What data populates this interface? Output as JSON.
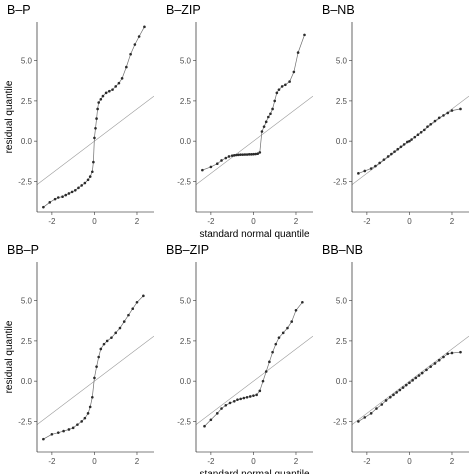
{
  "chart_data": [
    {
      "type": "scatter",
      "title": "B–P",
      "xlabel": "",
      "ylabel": "residual quantile",
      "xlim": [
        -2.7,
        2.8
      ],
      "ylim": [
        -4.4,
        7.4
      ],
      "xticks": [
        -2,
        0,
        2
      ],
      "yticks": [
        -2.5,
        0.0,
        2.5,
        5.0
      ],
      "ytick_labels": [
        "-2.5",
        "0.0",
        "2.5",
        "5.0"
      ],
      "xtick_labels": [
        "-2",
        "0",
        "2"
      ],
      "reference_line": {
        "intercept": 0,
        "slope": 1
      },
      "theoretical": [
        -2.4,
        -2.1,
        -1.85,
        -1.7,
        -1.5,
        -1.35,
        -1.2,
        -1.05,
        -0.9,
        -0.75,
        -0.6,
        -0.45,
        -0.3,
        -0.2,
        -0.1,
        -0.05,
        0.0,
        0.05,
        0.1,
        0.15,
        0.2,
        0.3,
        0.4,
        0.55,
        0.7,
        0.85,
        1.0,
        1.15,
        1.3,
        1.5,
        1.7,
        1.9,
        2.1,
        2.35
      ],
      "sample": [
        -4.1,
        -3.8,
        -3.6,
        -3.5,
        -3.45,
        -3.35,
        -3.25,
        -3.15,
        -3.05,
        -2.9,
        -2.75,
        -2.6,
        -2.4,
        -2.2,
        -1.9,
        -1.3,
        0.2,
        0.8,
        1.4,
        2.0,
        2.4,
        2.6,
        2.8,
        3.0,
        3.1,
        3.2,
        3.4,
        3.6,
        3.9,
        4.6,
        5.4,
        6.0,
        6.5,
        7.1
      ]
    },
    {
      "type": "scatter",
      "title": "B–ZIP",
      "xlabel": "standard normal quantile",
      "ylabel": "",
      "xlim": [
        -2.7,
        2.8
      ],
      "ylim": [
        -4.4,
        7.4
      ],
      "xticks": [
        -2,
        0,
        2
      ],
      "yticks": [
        -2.5,
        0.0,
        2.5,
        5.0
      ],
      "ytick_labels": [
        "-2.5",
        "0.0",
        "2.5",
        "5.0"
      ],
      "xtick_labels": [
        "-2",
        "0",
        "2"
      ],
      "reference_line": {
        "intercept": 0,
        "slope": 1
      },
      "theoretical": [
        -2.4,
        -2.0,
        -1.7,
        -1.5,
        -1.3,
        -1.15,
        -1.0,
        -0.9,
        -0.8,
        -0.7,
        -0.6,
        -0.5,
        -0.4,
        -0.3,
        -0.2,
        -0.1,
        0.0,
        0.1,
        0.2,
        0.3,
        0.4,
        0.5,
        0.6,
        0.7,
        0.8,
        0.9,
        1.0,
        1.1,
        1.2,
        1.35,
        1.5,
        1.7,
        1.9,
        2.1,
        2.4
      ],
      "sample": [
        -1.8,
        -1.6,
        -1.4,
        -1.2,
        -1.05,
        -0.95,
        -0.9,
        -0.88,
        -0.86,
        -0.85,
        -0.84,
        -0.84,
        -0.83,
        -0.83,
        -0.82,
        -0.82,
        -0.81,
        -0.8,
        -0.78,
        -0.7,
        0.6,
        0.9,
        1.2,
        1.5,
        1.7,
        2.0,
        2.5,
        3.0,
        3.2,
        3.4,
        3.5,
        3.7,
        4.3,
        5.5,
        6.6
      ]
    },
    {
      "type": "scatter",
      "title": "B–NB",
      "xlabel": "",
      "ylabel": "",
      "xlim": [
        -2.7,
        2.8
      ],
      "ylim": [
        -4.4,
        7.4
      ],
      "xticks": [
        -2,
        0,
        2
      ],
      "yticks": [
        -2.5,
        0.0,
        2.5,
        5.0
      ],
      "ytick_labels": [
        "-2.5",
        "0.0",
        "2.5",
        "5.0"
      ],
      "xtick_labels": [
        "-2",
        "0",
        "2"
      ],
      "reference_line": {
        "intercept": 0,
        "slope": 1
      },
      "theoretical": [
        -2.4,
        -2.1,
        -1.8,
        -1.6,
        -1.4,
        -1.2,
        -1.0,
        -0.85,
        -0.7,
        -0.55,
        -0.4,
        -0.25,
        -0.1,
        0.0,
        0.1,
        0.25,
        0.4,
        0.55,
        0.7,
        0.85,
        1.0,
        1.2,
        1.4,
        1.6,
        1.8,
        2.0,
        2.4
      ],
      "sample": [
        -2.0,
        -1.85,
        -1.7,
        -1.55,
        -1.35,
        -1.15,
        -0.95,
        -0.8,
        -0.65,
        -0.5,
        -0.35,
        -0.2,
        -0.05,
        0.0,
        0.1,
        0.25,
        0.4,
        0.55,
        0.7,
        0.9,
        1.05,
        1.25,
        1.45,
        1.6,
        1.75,
        1.9,
        2.0
      ]
    },
    {
      "type": "scatter",
      "title": "BB–P",
      "xlabel": "",
      "ylabel": "residual quantile",
      "xlim": [
        -2.7,
        2.8
      ],
      "ylim": [
        -4.4,
        7.4
      ],
      "xticks": [
        -2,
        0,
        2
      ],
      "yticks": [
        -2.5,
        0.0,
        2.5,
        5.0
      ],
      "ytick_labels": [
        "-2.5",
        "0.0",
        "2.5",
        "5.0"
      ],
      "xtick_labels": [
        "-2",
        "0",
        "2"
      ],
      "reference_line": {
        "intercept": 0,
        "slope": 1
      },
      "theoretical": [
        -2.4,
        -2.0,
        -1.7,
        -1.45,
        -1.2,
        -1.0,
        -0.8,
        -0.6,
        -0.45,
        -0.3,
        -0.2,
        -0.1,
        0.0,
        0.1,
        0.2,
        0.3,
        0.45,
        0.6,
        0.8,
        1.0,
        1.2,
        1.4,
        1.6,
        1.8,
        2.0,
        2.3
      ],
      "sample": [
        -3.6,
        -3.3,
        -3.2,
        -3.1,
        -3.0,
        -2.9,
        -2.7,
        -2.5,
        -2.3,
        -2.0,
        -1.6,
        -1.0,
        0.2,
        0.9,
        1.5,
        2.0,
        2.3,
        2.5,
        2.7,
        3.0,
        3.3,
        3.7,
        4.1,
        4.5,
        4.9,
        5.3
      ]
    },
    {
      "type": "scatter",
      "title": "BB–ZIP",
      "xlabel": "standard normal quantile",
      "ylabel": "",
      "xlim": [
        -2.7,
        2.8
      ],
      "ylim": [
        -4.4,
        7.4
      ],
      "xticks": [
        -2,
        0,
        2
      ],
      "yticks": [
        -2.5,
        0.0,
        2.5,
        5.0
      ],
      "ytick_labels": [
        "-2.5",
        "0.0",
        "2.5",
        "5.0"
      ],
      "xtick_labels": [
        "-2",
        "0",
        "2"
      ],
      "reference_line": {
        "intercept": 0,
        "slope": 1
      },
      "theoretical": [
        -2.3,
        -2.0,
        -1.7,
        -1.5,
        -1.3,
        -1.1,
        -0.9,
        -0.75,
        -0.6,
        -0.45,
        -0.3,
        -0.15,
        0.0,
        0.15,
        0.3,
        0.45,
        0.6,
        0.75,
        0.9,
        1.05,
        1.2,
        1.4,
        1.6,
        1.8,
        2.0,
        2.3
      ],
      "sample": [
        -2.8,
        -2.4,
        -2.0,
        -1.7,
        -1.5,
        -1.35,
        -1.25,
        -1.15,
        -1.1,
        -1.05,
        -1.0,
        -0.95,
        -0.9,
        -0.85,
        -0.6,
        0.0,
        0.6,
        1.2,
        1.8,
        2.3,
        2.7,
        3.0,
        3.3,
        3.7,
        4.4,
        4.9
      ]
    },
    {
      "type": "scatter",
      "title": "BB–NB",
      "xlabel": "",
      "ylabel": "",
      "xlim": [
        -2.7,
        2.8
      ],
      "ylim": [
        -4.4,
        7.4
      ],
      "xticks": [
        -2,
        0,
        2
      ],
      "yticks": [
        -2.5,
        0.0,
        2.5,
        5.0
      ],
      "ytick_labels": [
        "-2.5",
        "0.0",
        "2.5",
        "5.0"
      ],
      "xtick_labels": [
        "-2",
        "0",
        "2"
      ],
      "reference_line": {
        "intercept": 0,
        "slope": 1
      },
      "theoretical": [
        -2.4,
        -2.1,
        -1.8,
        -1.55,
        -1.3,
        -1.1,
        -0.9,
        -0.75,
        -0.6,
        -0.45,
        -0.3,
        -0.15,
        0.0,
        0.15,
        0.3,
        0.45,
        0.6,
        0.8,
        1.0,
        1.2,
        1.4,
        1.6,
        1.8,
        2.0,
        2.4
      ],
      "sample": [
        -2.5,
        -2.25,
        -2.0,
        -1.7,
        -1.45,
        -1.2,
        -1.0,
        -0.85,
        -0.7,
        -0.55,
        -0.4,
        -0.25,
        -0.1,
        0.05,
        0.2,
        0.35,
        0.5,
        0.7,
        0.9,
        1.1,
        1.3,
        1.5,
        1.7,
        1.75,
        1.8
      ]
    }
  ]
}
